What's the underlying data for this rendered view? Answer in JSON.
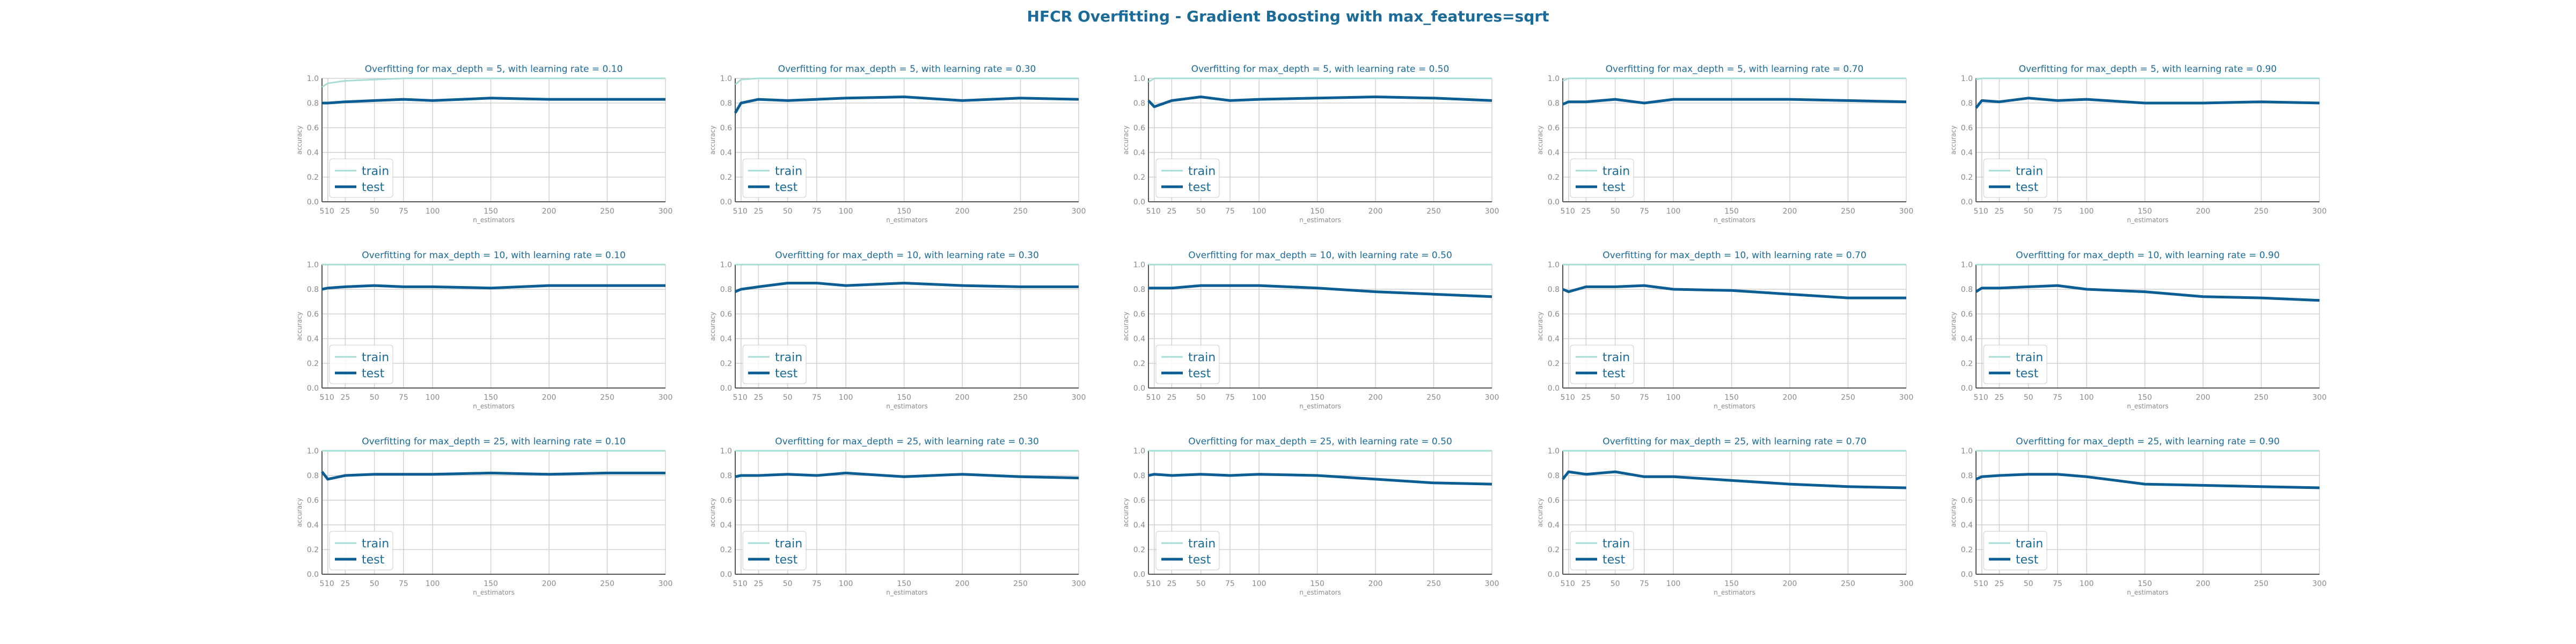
{
  "figure": {
    "title": "HFCR Overfitting - Gradient Boosting with max_features=sqrt"
  },
  "colors": {
    "train": "#a8dcd6",
    "test": "#0b5e93",
    "title": "#1a6a9a",
    "grid": "#d0d0d0",
    "axis": "#555555",
    "tick": "#8a8a8a"
  },
  "chart_data": [
    {
      "type": "line",
      "title": "Overfitting for max_depth = 5, with learning rate = 0.10",
      "xlabel": "n_estimators",
      "ylabel": "accuracy",
      "ylim": [
        0,
        1
      ],
      "xlim": [
        5,
        300
      ],
      "grid": true,
      "legend": "lower-left",
      "x": [
        5,
        10,
        25,
        50,
        75,
        100,
        150,
        200,
        250,
        300
      ],
      "xticks": [
        "5",
        "10",
        "25",
        "50",
        "75",
        "100",
        "150",
        "200",
        "250",
        "300"
      ],
      "yticks": [
        "0.0",
        "0.2",
        "0.4",
        "0.6",
        "0.8",
        "1.0"
      ],
      "series": [
        {
          "name": "train",
          "values": [
            0.93,
            0.96,
            0.98,
            0.99,
            1.0,
            1.0,
            1.0,
            1.0,
            1.0,
            1.0
          ]
        },
        {
          "name": "test",
          "values": [
            0.8,
            0.8,
            0.81,
            0.82,
            0.83,
            0.82,
            0.84,
            0.83,
            0.83,
            0.83
          ]
        }
      ]
    },
    {
      "type": "line",
      "title": "Overfitting for max_depth = 5, with learning rate = 0.30",
      "xlabel": "n_estimators",
      "ylabel": "accuracy",
      "ylim": [
        0,
        1
      ],
      "xlim": [
        5,
        300
      ],
      "grid": true,
      "legend": "lower-left",
      "x": [
        5,
        10,
        25,
        50,
        75,
        100,
        150,
        200,
        250,
        300
      ],
      "xticks": [
        "5",
        "10",
        "25",
        "50",
        "75",
        "100",
        "150",
        "200",
        "250",
        "300"
      ],
      "yticks": [
        "0.0",
        "0.2",
        "0.4",
        "0.6",
        "0.8",
        "1.0"
      ],
      "series": [
        {
          "name": "train",
          "values": [
            0.95,
            0.99,
            1.0,
            1.0,
            1.0,
            1.0,
            1.0,
            1.0,
            1.0,
            1.0
          ]
        },
        {
          "name": "test",
          "values": [
            0.72,
            0.8,
            0.83,
            0.82,
            0.83,
            0.84,
            0.85,
            0.82,
            0.84,
            0.83
          ]
        }
      ]
    },
    {
      "type": "line",
      "title": "Overfitting for max_depth = 5, with learning rate = 0.50",
      "xlabel": "n_estimators",
      "ylabel": "accuracy",
      "ylim": [
        0,
        1
      ],
      "xlim": [
        5,
        300
      ],
      "grid": true,
      "legend": "lower-left",
      "x": [
        5,
        10,
        25,
        50,
        75,
        100,
        150,
        200,
        250,
        300
      ],
      "xticks": [
        "5",
        "10",
        "25",
        "50",
        "75",
        "100",
        "150",
        "200",
        "250",
        "300"
      ],
      "yticks": [
        "0.0",
        "0.2",
        "0.4",
        "0.6",
        "0.8",
        "1.0"
      ],
      "series": [
        {
          "name": "train",
          "values": [
            0.97,
            1.0,
            1.0,
            1.0,
            1.0,
            1.0,
            1.0,
            1.0,
            1.0,
            1.0
          ]
        },
        {
          "name": "test",
          "values": [
            0.82,
            0.77,
            0.82,
            0.85,
            0.82,
            0.83,
            0.84,
            0.85,
            0.84,
            0.82
          ]
        }
      ]
    },
    {
      "type": "line",
      "title": "Overfitting for max_depth = 5, with learning rate = 0.70",
      "xlabel": "n_estimators",
      "ylabel": "accuracy",
      "ylim": [
        0,
        1
      ],
      "xlim": [
        5,
        300
      ],
      "grid": true,
      "legend": "lower-left",
      "x": [
        5,
        10,
        25,
        50,
        75,
        100,
        150,
        200,
        250,
        300
      ],
      "xticks": [
        "5",
        "10",
        "25",
        "50",
        "75",
        "100",
        "150",
        "200",
        "250",
        "300"
      ],
      "yticks": [
        "0.0",
        "0.2",
        "0.4",
        "0.6",
        "0.8",
        "1.0"
      ],
      "series": [
        {
          "name": "train",
          "values": [
            0.98,
            1.0,
            1.0,
            1.0,
            1.0,
            1.0,
            1.0,
            1.0,
            1.0,
            1.0
          ]
        },
        {
          "name": "test",
          "values": [
            0.79,
            0.81,
            0.81,
            0.83,
            0.8,
            0.83,
            0.83,
            0.83,
            0.82,
            0.81
          ]
        }
      ]
    },
    {
      "type": "line",
      "title": "Overfitting for max_depth = 5, with learning rate = 0.90",
      "xlabel": "n_estimators",
      "ylabel": "accuracy",
      "ylim": [
        0,
        1
      ],
      "xlim": [
        5,
        300
      ],
      "grid": true,
      "legend": "lower-left",
      "x": [
        5,
        10,
        25,
        50,
        75,
        100,
        150,
        200,
        250,
        300
      ],
      "xticks": [
        "5",
        "10",
        "25",
        "50",
        "75",
        "100",
        "150",
        "200",
        "250",
        "300"
      ],
      "yticks": [
        "0.0",
        "0.2",
        "0.4",
        "0.6",
        "0.8",
        "1.0"
      ],
      "series": [
        {
          "name": "train",
          "values": [
            0.99,
            1.0,
            1.0,
            1.0,
            1.0,
            1.0,
            1.0,
            1.0,
            1.0,
            1.0
          ]
        },
        {
          "name": "test",
          "values": [
            0.76,
            0.82,
            0.81,
            0.84,
            0.82,
            0.83,
            0.8,
            0.8,
            0.81,
            0.8
          ]
        }
      ]
    },
    {
      "type": "line",
      "title": "Overfitting for max_depth = 10, with learning rate = 0.10",
      "xlabel": "n_estimators",
      "ylabel": "accuracy",
      "ylim": [
        0,
        1
      ],
      "xlim": [
        5,
        300
      ],
      "grid": true,
      "legend": "lower-left",
      "x": [
        5,
        10,
        25,
        50,
        75,
        100,
        150,
        200,
        250,
        300
      ],
      "xticks": [
        "5",
        "10",
        "25",
        "50",
        "75",
        "100",
        "150",
        "200",
        "250",
        "300"
      ],
      "yticks": [
        "0.0",
        "0.2",
        "0.4",
        "0.6",
        "0.8",
        "1.0"
      ],
      "series": [
        {
          "name": "train",
          "values": [
            1.0,
            1.0,
            1.0,
            1.0,
            1.0,
            1.0,
            1.0,
            1.0,
            1.0,
            1.0
          ]
        },
        {
          "name": "test",
          "values": [
            0.8,
            0.81,
            0.82,
            0.83,
            0.82,
            0.82,
            0.81,
            0.83,
            0.83,
            0.83
          ]
        }
      ]
    },
    {
      "type": "line",
      "title": "Overfitting for max_depth = 10, with learning rate = 0.30",
      "xlabel": "n_estimators",
      "ylabel": "accuracy",
      "ylim": [
        0,
        1
      ],
      "xlim": [
        5,
        300
      ],
      "grid": true,
      "legend": "lower-left",
      "x": [
        5,
        10,
        25,
        50,
        75,
        100,
        150,
        200,
        250,
        300
      ],
      "xticks": [
        "5",
        "10",
        "25",
        "50",
        "75",
        "100",
        "150",
        "200",
        "250",
        "300"
      ],
      "yticks": [
        "0.0",
        "0.2",
        "0.4",
        "0.6",
        "0.8",
        "1.0"
      ],
      "series": [
        {
          "name": "train",
          "values": [
            1.0,
            1.0,
            1.0,
            1.0,
            1.0,
            1.0,
            1.0,
            1.0,
            1.0,
            1.0
          ]
        },
        {
          "name": "test",
          "values": [
            0.78,
            0.8,
            0.82,
            0.85,
            0.85,
            0.83,
            0.85,
            0.83,
            0.82,
            0.82
          ]
        }
      ]
    },
    {
      "type": "line",
      "title": "Overfitting for max_depth = 10, with learning rate = 0.50",
      "xlabel": "n_estimators",
      "ylabel": "accuracy",
      "ylim": [
        0,
        1
      ],
      "xlim": [
        5,
        300
      ],
      "grid": true,
      "legend": "lower-left",
      "x": [
        5,
        10,
        25,
        50,
        75,
        100,
        150,
        200,
        250,
        300
      ],
      "xticks": [
        "5",
        "10",
        "25",
        "50",
        "75",
        "100",
        "150",
        "200",
        "250",
        "300"
      ],
      "yticks": [
        "0.0",
        "0.2",
        "0.4",
        "0.6",
        "0.8",
        "1.0"
      ],
      "series": [
        {
          "name": "train",
          "values": [
            1.0,
            1.0,
            1.0,
            1.0,
            1.0,
            1.0,
            1.0,
            1.0,
            1.0,
            1.0
          ]
        },
        {
          "name": "test",
          "values": [
            0.81,
            0.81,
            0.81,
            0.83,
            0.83,
            0.83,
            0.81,
            0.78,
            0.76,
            0.74
          ]
        }
      ]
    },
    {
      "type": "line",
      "title": "Overfitting for max_depth = 10, with learning rate = 0.70",
      "xlabel": "n_estimators",
      "ylabel": "accuracy",
      "ylim": [
        0,
        1
      ],
      "xlim": [
        5,
        300
      ],
      "grid": true,
      "legend": "lower-left",
      "x": [
        5,
        10,
        25,
        50,
        75,
        100,
        150,
        200,
        250,
        300
      ],
      "xticks": [
        "5",
        "10",
        "25",
        "50",
        "75",
        "100",
        "150",
        "200",
        "250",
        "300"
      ],
      "yticks": [
        "0.0",
        "0.2",
        "0.4",
        "0.6",
        "0.8",
        "1.0"
      ],
      "series": [
        {
          "name": "train",
          "values": [
            1.0,
            1.0,
            1.0,
            1.0,
            1.0,
            1.0,
            1.0,
            1.0,
            1.0,
            1.0
          ]
        },
        {
          "name": "test",
          "values": [
            0.8,
            0.78,
            0.82,
            0.82,
            0.83,
            0.8,
            0.79,
            0.76,
            0.73,
            0.73
          ]
        }
      ]
    },
    {
      "type": "line",
      "title": "Overfitting for max_depth = 10, with learning rate = 0.90",
      "xlabel": "n_estimators",
      "ylabel": "accuracy",
      "ylim": [
        0,
        1
      ],
      "xlim": [
        5,
        300
      ],
      "grid": true,
      "legend": "lower-left",
      "x": [
        5,
        10,
        25,
        50,
        75,
        100,
        150,
        200,
        250,
        300
      ],
      "xticks": [
        "5",
        "10",
        "25",
        "50",
        "75",
        "100",
        "150",
        "200",
        "250",
        "300"
      ],
      "yticks": [
        "0.0",
        "0.2",
        "0.4",
        "0.6",
        "0.8",
        "1.0"
      ],
      "series": [
        {
          "name": "train",
          "values": [
            1.0,
            1.0,
            1.0,
            1.0,
            1.0,
            1.0,
            1.0,
            1.0,
            1.0,
            1.0
          ]
        },
        {
          "name": "test",
          "values": [
            0.78,
            0.81,
            0.81,
            0.82,
            0.83,
            0.8,
            0.78,
            0.74,
            0.73,
            0.71
          ]
        }
      ]
    },
    {
      "type": "line",
      "title": "Overfitting for max_depth = 25, with learning rate = 0.10",
      "xlabel": "n_estimators",
      "ylabel": "accuracy",
      "ylim": [
        0,
        1
      ],
      "xlim": [
        5,
        300
      ],
      "grid": true,
      "legend": "lower-left",
      "x": [
        5,
        10,
        25,
        50,
        75,
        100,
        150,
        200,
        250,
        300
      ],
      "xticks": [
        "5",
        "10",
        "25",
        "50",
        "75",
        "100",
        "150",
        "200",
        "250",
        "300"
      ],
      "yticks": [
        "0.0",
        "0.2",
        "0.4",
        "0.6",
        "0.8",
        "1.0"
      ],
      "series": [
        {
          "name": "train",
          "values": [
            1.0,
            1.0,
            1.0,
            1.0,
            1.0,
            1.0,
            1.0,
            1.0,
            1.0,
            1.0
          ]
        },
        {
          "name": "test",
          "values": [
            0.83,
            0.77,
            0.8,
            0.81,
            0.81,
            0.81,
            0.82,
            0.81,
            0.82,
            0.82
          ]
        }
      ]
    },
    {
      "type": "line",
      "title": "Overfitting for max_depth = 25, with learning rate = 0.30",
      "xlabel": "n_estimators",
      "ylabel": "accuracy",
      "ylim": [
        0,
        1
      ],
      "xlim": [
        5,
        300
      ],
      "grid": true,
      "legend": "lower-left",
      "x": [
        5,
        10,
        25,
        50,
        75,
        100,
        150,
        200,
        250,
        300
      ],
      "xticks": [
        "5",
        "10",
        "25",
        "50",
        "75",
        "100",
        "150",
        "200",
        "250",
        "300"
      ],
      "yticks": [
        "0.0",
        "0.2",
        "0.4",
        "0.6",
        "0.8",
        "1.0"
      ],
      "series": [
        {
          "name": "train",
          "values": [
            1.0,
            1.0,
            1.0,
            1.0,
            1.0,
            1.0,
            1.0,
            1.0,
            1.0,
            1.0
          ]
        },
        {
          "name": "test",
          "values": [
            0.79,
            0.8,
            0.8,
            0.81,
            0.8,
            0.82,
            0.79,
            0.81,
            0.79,
            0.78
          ]
        }
      ]
    },
    {
      "type": "line",
      "title": "Overfitting for max_depth = 25, with learning rate = 0.50",
      "xlabel": "n_estimators",
      "ylabel": "accuracy",
      "ylim": [
        0,
        1
      ],
      "xlim": [
        5,
        300
      ],
      "grid": true,
      "legend": "lower-left",
      "x": [
        5,
        10,
        25,
        50,
        75,
        100,
        150,
        200,
        250,
        300
      ],
      "xticks": [
        "5",
        "10",
        "25",
        "50",
        "75",
        "100",
        "150",
        "200",
        "250",
        "300"
      ],
      "yticks": [
        "0.0",
        "0.2",
        "0.4",
        "0.6",
        "0.8",
        "1.0"
      ],
      "series": [
        {
          "name": "train",
          "values": [
            1.0,
            1.0,
            1.0,
            1.0,
            1.0,
            1.0,
            1.0,
            1.0,
            1.0,
            1.0
          ]
        },
        {
          "name": "test",
          "values": [
            0.8,
            0.81,
            0.8,
            0.81,
            0.8,
            0.81,
            0.8,
            0.77,
            0.74,
            0.73
          ]
        }
      ]
    },
    {
      "type": "line",
      "title": "Overfitting for max_depth = 25, with learning rate = 0.70",
      "xlabel": "n_estimators",
      "ylabel": "accuracy",
      "ylim": [
        0,
        1
      ],
      "xlim": [
        5,
        300
      ],
      "grid": true,
      "legend": "lower-left",
      "x": [
        5,
        10,
        25,
        50,
        75,
        100,
        150,
        200,
        250,
        300
      ],
      "xticks": [
        "5",
        "10",
        "25",
        "50",
        "75",
        "100",
        "150",
        "200",
        "250",
        "300"
      ],
      "yticks": [
        "0.0",
        "0.2",
        "0.4",
        "0.6",
        "0.8",
        "1.0"
      ],
      "series": [
        {
          "name": "train",
          "values": [
            1.0,
            1.0,
            1.0,
            1.0,
            1.0,
            1.0,
            1.0,
            1.0,
            1.0,
            1.0
          ]
        },
        {
          "name": "test",
          "values": [
            0.77,
            0.83,
            0.81,
            0.83,
            0.79,
            0.79,
            0.76,
            0.73,
            0.71,
            0.7
          ]
        }
      ]
    },
    {
      "type": "line",
      "title": "Overfitting for max_depth = 25, with learning rate = 0.90",
      "xlabel": "n_estimators",
      "ylabel": "accuracy",
      "ylim": [
        0,
        1
      ],
      "xlim": [
        5,
        300
      ],
      "grid": true,
      "legend": "lower-left",
      "x": [
        5,
        10,
        25,
        50,
        75,
        100,
        150,
        200,
        250,
        300
      ],
      "xticks": [
        "5",
        "10",
        "25",
        "50",
        "75",
        "100",
        "150",
        "200",
        "250",
        "300"
      ],
      "yticks": [
        "0.0",
        "0.2",
        "0.4",
        "0.6",
        "0.8",
        "1.0"
      ],
      "series": [
        {
          "name": "train",
          "values": [
            1.0,
            1.0,
            1.0,
            1.0,
            1.0,
            1.0,
            1.0,
            1.0,
            1.0,
            1.0
          ]
        },
        {
          "name": "test",
          "values": [
            0.77,
            0.79,
            0.8,
            0.81,
            0.81,
            0.79,
            0.73,
            0.72,
            0.71,
            0.7
          ]
        }
      ]
    }
  ]
}
